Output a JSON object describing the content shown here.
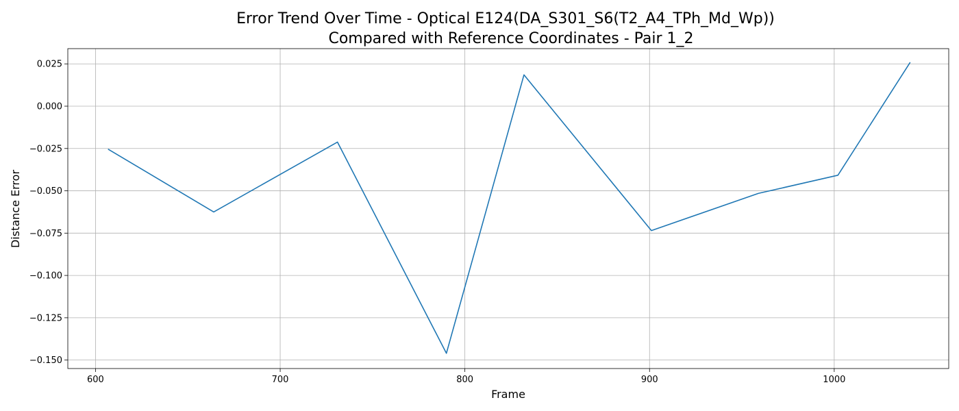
{
  "chart_data": {
    "type": "line",
    "title_lines": [
      "Error Trend Over Time - Optical E124(DA_S301_S6(T2_A4_TPh_Md_Wp))",
      "Compared with Reference Coordinates - Pair 1_2"
    ],
    "xlabel": "Frame",
    "ylabel": "Distance Error",
    "xlim": [
      585,
      1062
    ],
    "ylim": [
      -0.155,
      0.034
    ],
    "xticks": [
      600,
      700,
      800,
      900,
      1000
    ],
    "xtick_labels": [
      "600",
      "700",
      "800",
      "900",
      "1000"
    ],
    "yticks": [
      0.025,
      0.0,
      -0.025,
      -0.05,
      -0.075,
      -0.1,
      -0.125,
      -0.15
    ],
    "ytick_labels": [
      "0.025",
      "0.000",
      "−0.025",
      "−0.050",
      "−0.075",
      "−0.100",
      "−0.125",
      "−0.150"
    ],
    "grid": true,
    "series": [
      {
        "color": "#1f77b4",
        "x": [
          607,
          664,
          731,
          790,
          832,
          901,
          959,
          1002,
          1041
        ],
        "y": [
          -0.0255,
          -0.0625,
          -0.0212,
          -0.146,
          0.0185,
          -0.0735,
          -0.0515,
          -0.0408,
          0.0257
        ]
      }
    ]
  }
}
